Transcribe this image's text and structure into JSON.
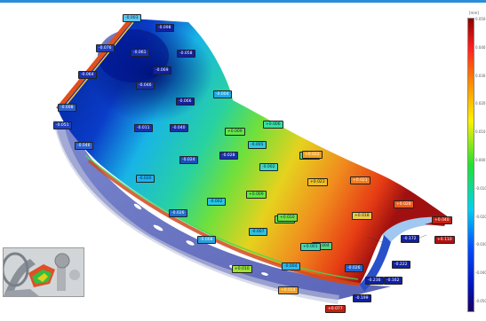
{
  "colors": {
    "accent": "#2a8fd6",
    "scale_top": "#8b0000",
    "scale_red": "#ff1e1e",
    "scale_yellow": "#fff200",
    "scale_green": "#22e030",
    "scale_cyan": "#00d2f0",
    "scale_blue": "#0018c8",
    "scale_bottom": "#1a0060"
  },
  "colorbar": {
    "unit": "[mm]",
    "ticks": [
      "0.050",
      "0.040",
      "0.030",
      "0.020",
      "0.010",
      "0.000",
      "-0.010",
      "-0.020",
      "-0.030",
      "-0.040",
      "-0.050"
    ]
  },
  "annotations": [
    {
      "text": "-0.003",
      "bg": "#5ec8f0",
      "fg": "#0a2040"
    },
    {
      "text": "-0.076",
      "bg": "#2040c0",
      "fg": "#ffffff"
    },
    {
      "text": "-0.098",
      "bg": "#1020a0",
      "fg": "#ffffff"
    },
    {
      "text": "-0.064",
      "bg": "#1830b0",
      "fg": "#ffffff"
    },
    {
      "text": "-0.061",
      "bg": "#1830b0",
      "fg": "#ffffff"
    },
    {
      "text": "-0.058",
      "bg": "#1020a0",
      "fg": "#ffffff"
    },
    {
      "text": "-0.069",
      "bg": "#1020a0",
      "fg": "#ffffff"
    },
    {
      "text": "-0.046",
      "bg": "#1830b0",
      "fg": "#ffffff"
    },
    {
      "text": "-0.066",
      "bg": "#1020a0",
      "fg": "#ffffff"
    },
    {
      "text": "-0.008",
      "bg": "#2a60d0",
      "fg": "#ffffff"
    },
    {
      "text": "-0.011",
      "bg": "#1830b0",
      "fg": "#ffffff"
    },
    {
      "text": "-0.040",
      "bg": "#1830b0",
      "fg": "#ffffff"
    },
    {
      "text": "-0.046",
      "bg": "#2a60d0",
      "fg": "#ffffff"
    },
    {
      "text": "-0.004",
      "bg": "#20a8e8",
      "fg": "#ffffff"
    },
    {
      "text": "-0.024",
      "bg": "#1a50c0",
      "fg": "#ffffff"
    },
    {
      "text": "-0.028",
      "bg": "#1830b0",
      "fg": "#ffffff"
    },
    {
      "text": "-0.020",
      "bg": "#20b0f0",
      "fg": "#0a2040"
    },
    {
      "text": "-0.026",
      "bg": "#2070d0",
      "fg": "#ffffff"
    },
    {
      "text": "-0.002",
      "bg": "#20c8e8",
      "fg": "#0a2040"
    },
    {
      "text": "-0.013",
      "bg": "#30c0e8",
      "fg": "#0a2040"
    },
    {
      "text": "+0.006",
      "bg": "#38e0a0",
      "fg": "#0a2040"
    },
    {
      "text": "-0.005",
      "bg": "#30c8d8",
      "fg": "#0a2040"
    },
    {
      "text": "-0.002",
      "bg": "#40d8c0",
      "fg": "#0a2040"
    },
    {
      "text": "+0.009",
      "bg": "#60e840",
      "fg": "#0a2040"
    },
    {
      "text": "+0.005",
      "bg": "#50e060",
      "fg": "#0a2040"
    },
    {
      "text": "+0.022",
      "bg": "#f0a020",
      "fg": "#ffffff"
    },
    {
      "text": "+0.023",
      "bg": "#f0c020",
      "fg": "#0a2040"
    },
    {
      "text": "+0.021",
      "bg": "#f08020",
      "fg": "#ffffff"
    },
    {
      "text": "+0.028",
      "bg": "#e86020",
      "fg": "#ffffff"
    },
    {
      "text": "+0.018",
      "bg": "#f0c840",
      "fg": "#0a2040"
    },
    {
      "text": "+0.006",
      "bg": "#60e050",
      "fg": "#0a2040"
    },
    {
      "text": "-0.008",
      "bg": "#28a0e0",
      "fg": "#ffffff"
    },
    {
      "text": "-0.007",
      "bg": "#30c0e0",
      "fg": "#0a2040"
    },
    {
      "text": "+0.010",
      "bg": "#70e040",
      "fg": "#0a2040"
    },
    {
      "text": "+0.004",
      "bg": "#50d880",
      "fg": "#0a2040"
    },
    {
      "text": "+0.001",
      "bg": "#48d8b0",
      "fg": "#0a2040"
    },
    {
      "text": "+0.010",
      "bg": "#a0e030",
      "fg": "#0a2040"
    },
    {
      "text": "+0.040",
      "bg": "#c02010",
      "fg": "#ffffff"
    },
    {
      "text": "-0.172",
      "bg": "#1020a0",
      "fg": "#ffffff"
    },
    {
      "text": "+0.110",
      "bg": "#b01010",
      "fg": "#ffffff"
    },
    {
      "text": "-0.004",
      "bg": "#30b8e8",
      "fg": "#0a2040"
    },
    {
      "text": "-0.026",
      "bg": "#2060d0",
      "fg": "#ffffff"
    },
    {
      "text": "-0.222",
      "bg": "#1020a0",
      "fg": "#ffffff"
    },
    {
      "text": "-0.236",
      "bg": "#1020a0",
      "fg": "#ffffff"
    },
    {
      "text": "-0.162",
      "bg": "#1020a0",
      "fg": "#ffffff"
    },
    {
      "text": "-0.199",
      "bg": "#1020a0",
      "fg": "#ffffff"
    },
    {
      "text": "+0.014",
      "bg": "#f0a020",
      "fg": "#ffffff"
    },
    {
      "text": "+0.077",
      "bg": "#c02010",
      "fg": "#ffffff"
    },
    {
      "text": "+0.009",
      "bg": "#60e840",
      "fg": "#0a2040"
    },
    {
      "text": "-0.051",
      "bg": "#2040c0",
      "fg": "#ffffff"
    }
  ]
}
